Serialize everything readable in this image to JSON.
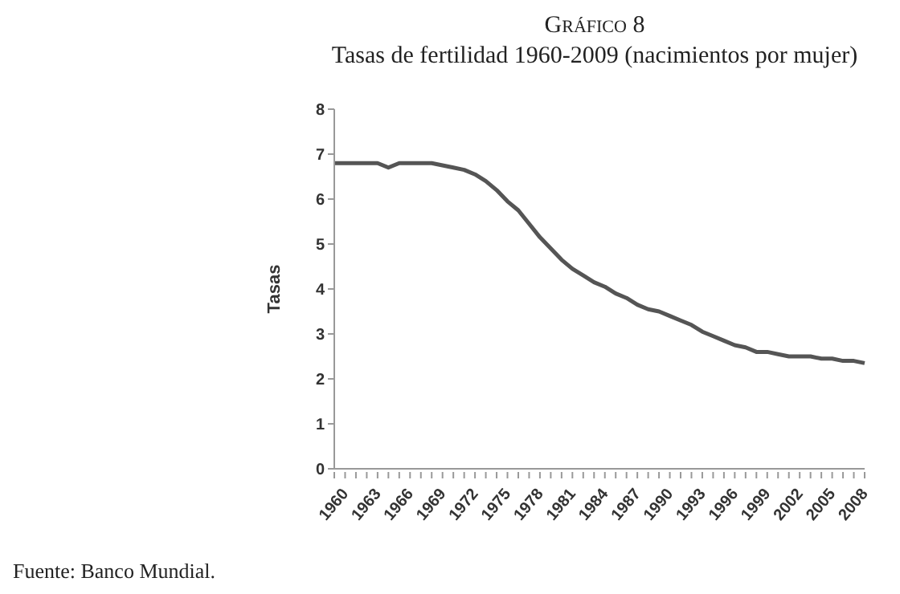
{
  "chart_data": {
    "type": "line",
    "title": "Gráfico 8",
    "subtitle": "Tasas de fertilidad 1960-2009 (nacimientos por mujer)",
    "ylabel": "Tasas",
    "annotations": [
      "Fuente: Banco Mundial."
    ],
    "categories": [
      "1960",
      null,
      null,
      "1963",
      null,
      null,
      "1966",
      null,
      null,
      "1969",
      null,
      null,
      "1972",
      null,
      null,
      "1975",
      null,
      null,
      "1978",
      null,
      null,
      "1981",
      null,
      null,
      "1984",
      null,
      null,
      "1987",
      null,
      null,
      "1990",
      null,
      null,
      "1993",
      null,
      null,
      "1996",
      null,
      null,
      "1999",
      null,
      null,
      "2002",
      null,
      null,
      "2005",
      null,
      null,
      "2008",
      null
    ],
    "series": [
      {
        "color": "#555555",
        "values": [
          6.8,
          6.8,
          6.8,
          6.8,
          6.8,
          6.7,
          6.8,
          6.8,
          6.8,
          6.8,
          6.75,
          6.7,
          6.65,
          6.55,
          6.4,
          6.2,
          5.95,
          5.75,
          5.45,
          5.15,
          4.9,
          4.65,
          4.45,
          4.3,
          4.15,
          4.05,
          3.9,
          3.8,
          3.65,
          3.55,
          3.5,
          3.4,
          3.3,
          3.2,
          3.05,
          2.95,
          2.85,
          2.75,
          2.7,
          2.6,
          2.6,
          2.55,
          2.5,
          2.5,
          2.5,
          2.45,
          2.45,
          2.4,
          2.4,
          2.35
        ]
      }
    ],
    "ylim": [
      0,
      8
    ],
    "yticks": [
      0,
      1,
      2,
      3,
      4,
      5,
      6,
      7,
      8
    ],
    "grid": false,
    "legend": false,
    "marker": "none",
    "line_style": "solid"
  }
}
